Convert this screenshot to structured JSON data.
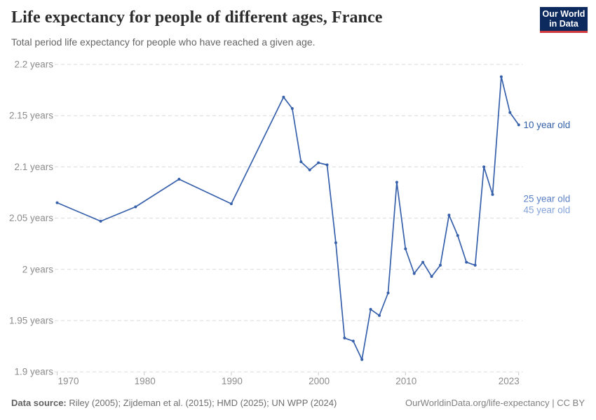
{
  "header": {
    "title": "Life expectancy for people of different ages, France",
    "subtitle": "Total period life expectancy for people who have reached a given age.",
    "logo": {
      "line1": "Our World",
      "line2": "in Data"
    }
  },
  "chart_data": {
    "type": "line",
    "title": "Life expectancy for people of different ages, France",
    "subtitle": "Total period life expectancy for people who have reached a given age.",
    "xlabel": "",
    "ylabel": "",
    "grid": true,
    "legend_position": "end-of-line",
    "xlim": [
      1969.7,
      2024.6
    ],
    "ylim": [
      1.9,
      2.2
    ],
    "colors": {
      "line": "#3760ab",
      "gridline": "#dadada",
      "tick": "#c9c9c9",
      "axis_text": "#8c8c8c"
    },
    "y_ticks": [
      {
        "value": 2.2,
        "label": "2.2 years"
      },
      {
        "value": 2.15,
        "label": "2.15 years"
      },
      {
        "value": 2.1,
        "label": "2.1 years"
      },
      {
        "value": 2.05,
        "label": "2.05 years"
      },
      {
        "value": 2.0,
        "label": "2 years"
      },
      {
        "value": 1.95,
        "label": "1.95 years"
      },
      {
        "value": 1.9,
        "label": "1.9 years"
      }
    ],
    "x_ticks": [
      {
        "value": 1970,
        "label": "1970"
      },
      {
        "value": 1980,
        "label": "1980"
      },
      {
        "value": 1990,
        "label": "1990"
      },
      {
        "value": 2000,
        "label": "2000"
      },
      {
        "value": 2010,
        "label": "2010"
      },
      {
        "value": 2023,
        "label": "2023"
      }
    ],
    "series": [
      {
        "name": "10 year old",
        "color": "#3760ab",
        "points": [
          [
            1970,
            2.065
          ],
          [
            1975,
            2.047
          ],
          [
            1979,
            2.061
          ],
          [
            1984,
            2.088
          ],
          [
            1990,
            2.064
          ],
          [
            1996,
            2.168
          ],
          [
            1997,
            2.157
          ],
          [
            1998,
            2.105
          ],
          [
            1999,
            2.097
          ],
          [
            2000,
            2.104
          ],
          [
            2001,
            2.102
          ],
          [
            2002,
            2.026
          ],
          [
            2003,
            1.933
          ],
          [
            2004,
            1.93
          ],
          [
            2005,
            1.912
          ],
          [
            2006,
            1.961
          ],
          [
            2007,
            1.955
          ],
          [
            2008,
            1.977
          ],
          [
            2009,
            2.085
          ],
          [
            2010,
            2.02
          ],
          [
            2011,
            1.996
          ],
          [
            2012,
            2.007
          ],
          [
            2013,
            1.993
          ],
          [
            2014,
            2.004
          ],
          [
            2015,
            2.053
          ],
          [
            2016,
            2.033
          ],
          [
            2017,
            2.007
          ],
          [
            2018,
            2.004
          ],
          [
            2019,
            2.1
          ],
          [
            2020,
            2.073
          ],
          [
            2021,
            2.188
          ],
          [
            2022,
            2.153
          ],
          [
            2023,
            2.141
          ]
        ]
      }
    ],
    "end_labels": [
      {
        "label": "10 year old",
        "value": 2.141,
        "color": "#3360a9"
      },
      {
        "label": "25 year old",
        "value": 2.069,
        "color": "#5b80c6"
      },
      {
        "label": "45 year old",
        "value": 2.058,
        "color": "#85a3dc"
      }
    ]
  },
  "footer": {
    "datasource_label": "Data source:",
    "datasource_value": " Riley (2005); Zijdeman et al. (2015); HMD (2025); UN WPP (2024)",
    "link": "OurWorldinData.org/life-expectancy | CC BY"
  }
}
